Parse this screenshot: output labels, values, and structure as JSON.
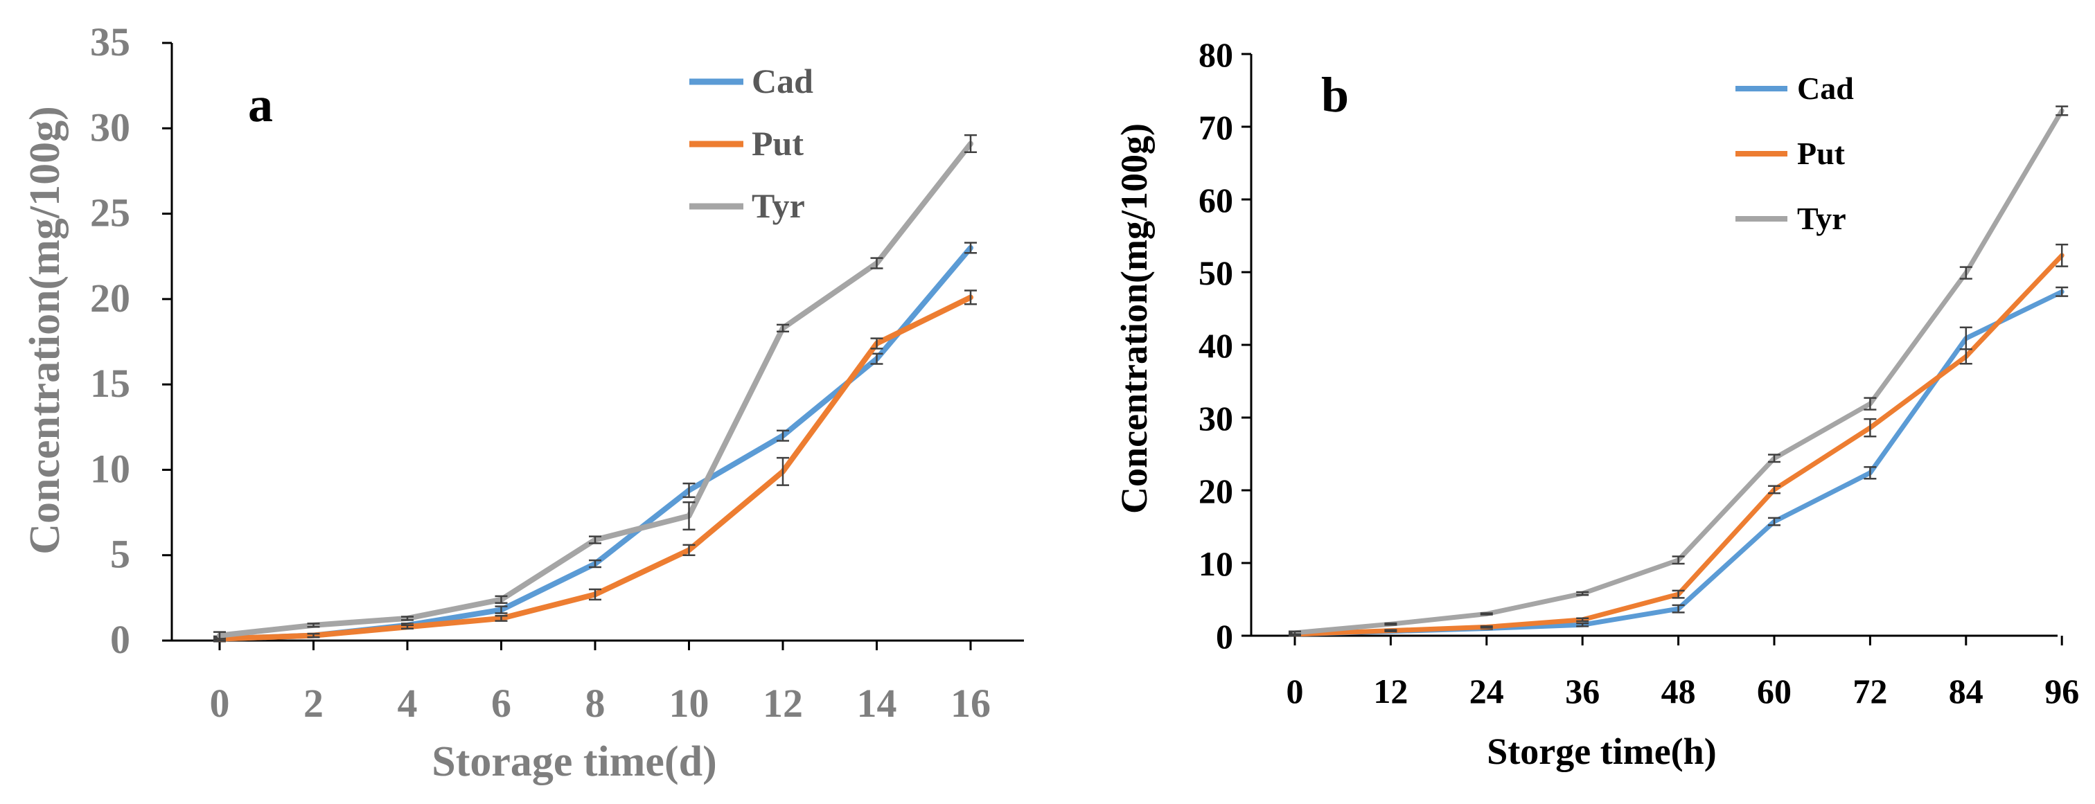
{
  "chart_data": [
    {
      "type": "line",
      "panel_label": "a",
      "xlabel": "Storage time(d)",
      "ylabel": "Concentration(mg/100g)",
      "x": [
        0,
        2,
        4,
        6,
        8,
        10,
        12,
        14,
        16
      ],
      "x_tick_labels": [
        "0",
        "2",
        "4",
        "6",
        "8",
        "10",
        "12",
        "14",
        "16"
      ],
      "ylim": [
        0,
        35
      ],
      "y_ticks": [
        0,
        5,
        10,
        15,
        20,
        25,
        30,
        35
      ],
      "y_tick_labels": [
        "0",
        "5",
        "10",
        "15",
        "20",
        "25",
        "30",
        "35"
      ],
      "grid": false,
      "legend_position": "top-right",
      "series": [
        {
          "name": "Cad",
          "color": "#5b9bd5",
          "values": [
            0.1,
            0.3,
            0.9,
            1.8,
            4.5,
            8.8,
            12.0,
            16.5,
            23.0
          ],
          "errors": [
            0.15,
            0.1,
            0.1,
            0.2,
            0.2,
            0.4,
            0.3,
            0.3,
            0.3
          ]
        },
        {
          "name": "Put",
          "color": "#ed7d31",
          "values": [
            0.1,
            0.3,
            0.8,
            1.3,
            2.7,
            5.3,
            9.9,
            17.4,
            20.1
          ],
          "errors": [
            0.1,
            0.1,
            0.1,
            0.15,
            0.3,
            0.3,
            0.8,
            0.3,
            0.4
          ]
        },
        {
          "name": "Tyr",
          "color": "#a5a5a5",
          "values": [
            0.3,
            0.9,
            1.3,
            2.4,
            5.9,
            7.3,
            18.3,
            22.1,
            29.1
          ],
          "errors": [
            0.2,
            0.1,
            0.1,
            0.2,
            0.2,
            0.8,
            0.2,
            0.3,
            0.5
          ]
        }
      ]
    },
    {
      "type": "line",
      "panel_label": "b",
      "xlabel": "Storge time(h)",
      "ylabel": "Concentration(mg/100g)",
      "x": [
        0,
        12,
        24,
        36,
        48,
        60,
        72,
        84,
        96
      ],
      "x_tick_labels": [
        "0",
        "12",
        "24",
        "36",
        "48",
        "60",
        "72",
        "84",
        "96"
      ],
      "ylim": [
        0,
        80
      ],
      "y_ticks": [
        0,
        10,
        20,
        30,
        40,
        50,
        60,
        70,
        80
      ],
      "y_tick_labels": [
        "0",
        "10",
        "20",
        "30",
        "40",
        "50",
        "60",
        "70",
        "80"
      ],
      "grid": false,
      "legend_position": "top-right",
      "series": [
        {
          "name": "Cad",
          "color": "#5b9bd5",
          "values": [
            0.2,
            0.6,
            1.0,
            1.5,
            3.7,
            15.7,
            22.4,
            40.9,
            47.3
          ],
          "errors": [
            0.2,
            0.1,
            0.1,
            0.2,
            0.5,
            0.5,
            0.8,
            1.5,
            0.6
          ]
        },
        {
          "name": "Put",
          "color": "#ed7d31",
          "values": [
            0.2,
            0.7,
            1.2,
            2.2,
            5.7,
            20.1,
            28.6,
            38.4,
            52.3
          ],
          "errors": [
            0.2,
            0.1,
            0.1,
            0.2,
            0.5,
            0.5,
            1.2,
            1.0,
            1.5
          ]
        },
        {
          "name": "Tyr",
          "color": "#a5a5a5",
          "values": [
            0.4,
            1.6,
            3.0,
            5.8,
            10.4,
            24.4,
            31.9,
            49.9,
            72.2
          ],
          "errors": [
            0.2,
            0.1,
            0.1,
            0.2,
            0.5,
            0.5,
            0.8,
            0.8,
            0.6
          ]
        }
      ]
    }
  ]
}
